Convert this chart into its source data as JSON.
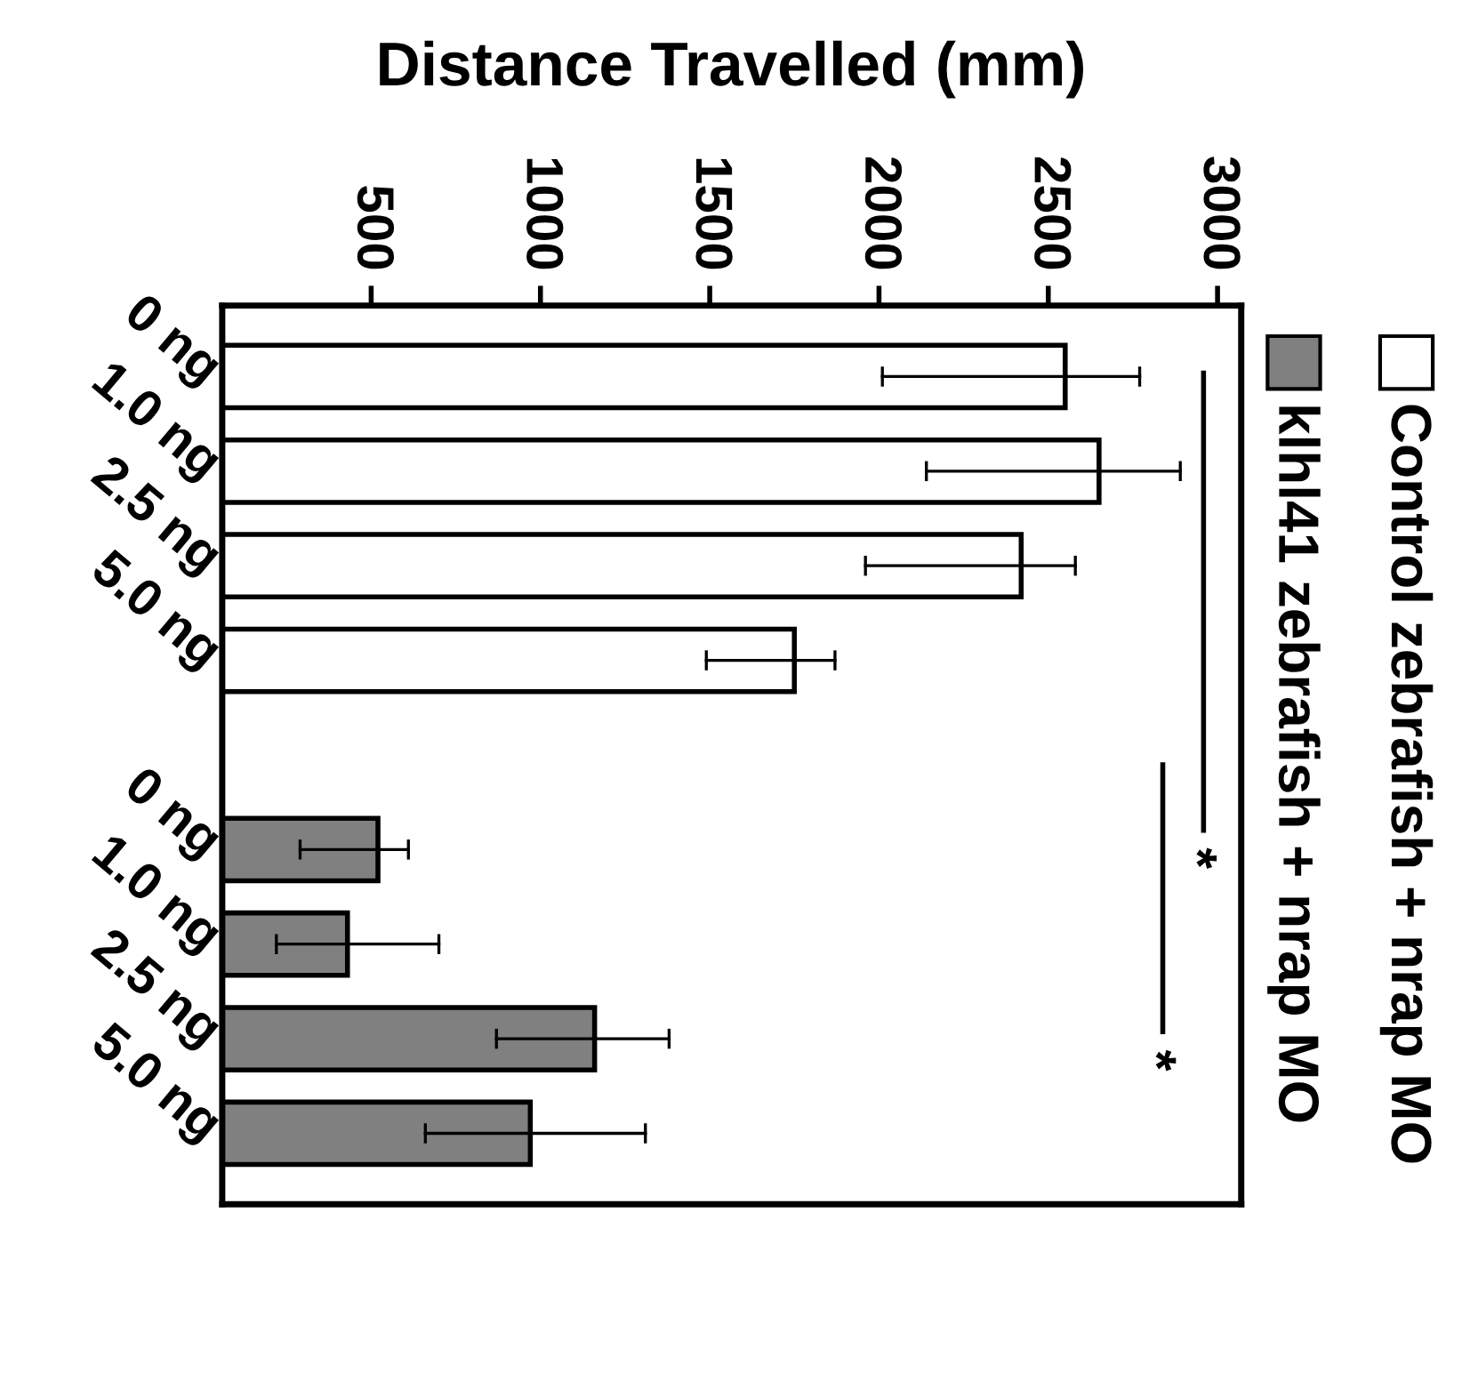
{
  "chart_data": {
    "type": "bar",
    "orientation": "horizontal",
    "title": "Distance Travelled (mm)",
    "categories": [
      "0 ng",
      "1.0 ng",
      "2.5 ng",
      "5.0 ng",
      null,
      "0 ng",
      "1.0 ng",
      "2.5 ng",
      "5.0 ng"
    ],
    "series": [
      {
        "name": "Control zebrafish + nrap MO",
        "color": "#ffffff",
        "values": [
          2550,
          2650,
          2420,
          1750,
          null,
          null,
          null,
          null,
          null
        ],
        "errors": [
          [
            2010,
            2770
          ],
          [
            2140,
            2890
          ],
          [
            1960,
            2580
          ],
          [
            1490,
            1870
          ],
          null,
          null,
          null,
          null,
          null
        ]
      },
      {
        "name": "klhl41 zebrafish + nrap MO",
        "color": "#808080",
        "values": [
          null,
          null,
          null,
          null,
          null,
          520,
          430,
          1160,
          970
        ],
        "errors": [
          null,
          null,
          null,
          null,
          null,
          [
            290,
            610
          ],
          [
            220,
            700
          ],
          [
            870,
            1380
          ],
          [
            660,
            1310
          ]
        ]
      }
    ],
    "xlim": [
      60,
      3070
    ],
    "xticks": [
      500,
      1000,
      1500,
      2000,
      2500,
      3000
    ],
    "annotations": [
      "*",
      "*"
    ],
    "legend": "right",
    "grid": false
  }
}
